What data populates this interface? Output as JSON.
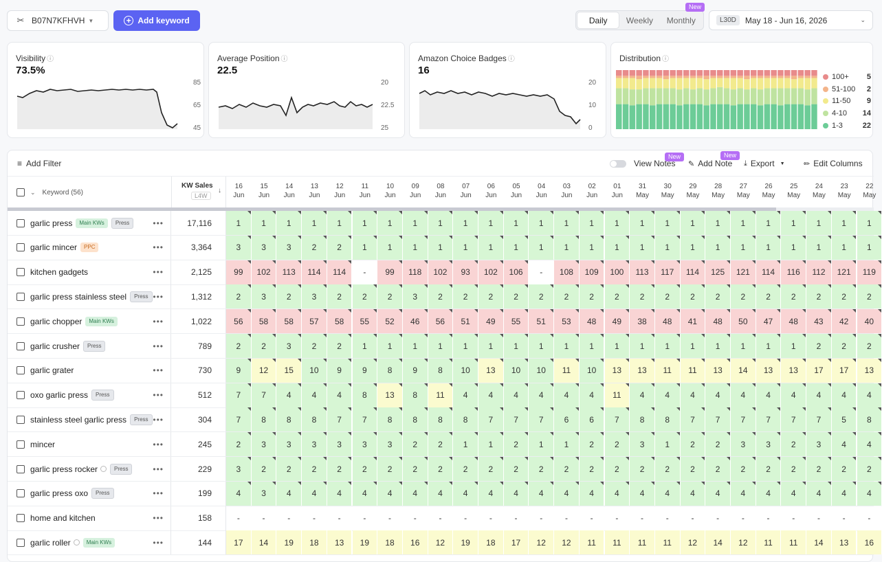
{
  "top": {
    "asin": "B07N7KFHVH",
    "add_keyword": "Add keyword",
    "periods": [
      "Daily",
      "Weekly",
      "Monthly"
    ],
    "active_period": "Daily",
    "new_badge": "New",
    "range_tag": "L30D",
    "range_text": "May 18 - Jun 16, 2026"
  },
  "cards": {
    "visibility": {
      "title": "Visibility",
      "value": "73.5%",
      "ticks": [
        "85",
        "65",
        "45"
      ]
    },
    "avg_position": {
      "title": "Average Position",
      "value": "22.5",
      "ticks": [
        "20",
        "22.5",
        "25"
      ]
    },
    "choice": {
      "title": "Amazon Choice Badges",
      "value": "16",
      "ticks": [
        "20",
        "10",
        "0"
      ]
    },
    "distribution": {
      "title": "Distribution",
      "legend": [
        {
          "label": "100+",
          "count": "5",
          "color": "#e88b8b"
        },
        {
          "label": "51-100",
          "count": "2",
          "color": "#f3b48a"
        },
        {
          "label": "11-50",
          "count": "9",
          "color": "#f2ea8d"
        },
        {
          "label": "4-10",
          "count": "14",
          "color": "#bfe3a0"
        },
        {
          "label": "1-3",
          "count": "22",
          "color": "#6ccc97"
        }
      ]
    }
  },
  "toolbar": {
    "add_filter": "Add Filter",
    "view_notes": "View Notes",
    "add_note": "Add Note",
    "export": "Export",
    "edit_columns": "Edit Columns",
    "new_badge": "New"
  },
  "header": {
    "keyword_col": "Keyword (56)",
    "sales_col": "KW Sales",
    "sales_sub": "L4W",
    "dates": [
      [
        "16",
        "Jun"
      ],
      [
        "15",
        "Jun"
      ],
      [
        "14",
        "Jun"
      ],
      [
        "13",
        "Jun"
      ],
      [
        "12",
        "Jun"
      ],
      [
        "11",
        "Jun"
      ],
      [
        "10",
        "Jun"
      ],
      [
        "09",
        "Jun"
      ],
      [
        "08",
        "Jun"
      ],
      [
        "07",
        "Jun"
      ],
      [
        "06",
        "Jun"
      ],
      [
        "05",
        "Jun"
      ],
      [
        "04",
        "Jun"
      ],
      [
        "03",
        "Jun"
      ],
      [
        "02",
        "Jun"
      ],
      [
        "01",
        "Jun"
      ],
      [
        "31",
        "May"
      ],
      [
        "30",
        "May"
      ],
      [
        "29",
        "May"
      ],
      [
        "28",
        "May"
      ],
      [
        "27",
        "May"
      ],
      [
        "26",
        "May"
      ],
      [
        "25",
        "May"
      ],
      [
        "24",
        "May"
      ],
      [
        "23",
        "May"
      ],
      [
        "22",
        "May"
      ]
    ]
  },
  "rows": [
    {
      "keyword": "garlic press",
      "badges": [
        "Main KWs",
        "Press"
      ],
      "sales": "17,116",
      "info": false,
      "values": [
        "1",
        "1",
        "1",
        "1",
        "1",
        "1",
        "1",
        "1",
        "1",
        "1",
        "1",
        "1",
        "1",
        "1",
        "1",
        "1",
        "1",
        "1",
        "1",
        "1",
        "1",
        "1",
        "1",
        "1",
        "1",
        "1"
      ]
    },
    {
      "keyword": "garlic mincer",
      "badges": [
        "PPC"
      ],
      "sales": "3,364",
      "info": false,
      "values": [
        "3",
        "3",
        "3",
        "2",
        "2",
        "1",
        "1",
        "1",
        "1",
        "1",
        "1",
        "1",
        "1",
        "1",
        "1",
        "1",
        "1",
        "1",
        "1",
        "1",
        "1",
        "1",
        "1",
        "1",
        "1",
        "1"
      ]
    },
    {
      "keyword": "kitchen gadgets",
      "badges": [],
      "sales": "2,125",
      "info": false,
      "values": [
        "99",
        "102",
        "113",
        "114",
        "114",
        "-",
        "99",
        "118",
        "102",
        "93",
        "102",
        "106",
        "-",
        "108",
        "109",
        "100",
        "113",
        "117",
        "114",
        "125",
        "121",
        "114",
        "116",
        "112",
        "121",
        "119"
      ]
    },
    {
      "keyword": "garlic press stainless steel",
      "badges": [
        "Press"
      ],
      "sales": "1,312",
      "info": false,
      "values": [
        "2",
        "3",
        "2",
        "3",
        "2",
        "2",
        "2",
        "3",
        "2",
        "2",
        "2",
        "2",
        "2",
        "2",
        "2",
        "2",
        "2",
        "2",
        "2",
        "2",
        "2",
        "2",
        "2",
        "2",
        "2",
        "2"
      ]
    },
    {
      "keyword": "garlic chopper",
      "badges": [
        "Main KWs"
      ],
      "sales": "1,022",
      "info": false,
      "values": [
        "56",
        "58",
        "58",
        "57",
        "58",
        "55",
        "52",
        "46",
        "56",
        "51",
        "49",
        "55",
        "51",
        "53",
        "48",
        "49",
        "38",
        "48",
        "41",
        "48",
        "50",
        "47",
        "48",
        "43",
        "42",
        "40"
      ]
    },
    {
      "keyword": "garlic crusher",
      "badges": [
        "Press"
      ],
      "sales": "789",
      "info": false,
      "values": [
        "2",
        "2",
        "3",
        "2",
        "2",
        "1",
        "1",
        "1",
        "1",
        "1",
        "1",
        "1",
        "1",
        "1",
        "1",
        "1",
        "1",
        "1",
        "1",
        "1",
        "1",
        "1",
        "1",
        "2",
        "2",
        "2"
      ]
    },
    {
      "keyword": "garlic grater",
      "badges": [],
      "sales": "730",
      "info": false,
      "values": [
        "9",
        "12",
        "15",
        "10",
        "9",
        "9",
        "8",
        "9",
        "8",
        "10",
        "13",
        "10",
        "10",
        "11",
        "10",
        "13",
        "13",
        "11",
        "11",
        "13",
        "14",
        "13",
        "13",
        "17",
        "17",
        "13"
      ]
    },
    {
      "keyword": "oxo garlic press",
      "badges": [
        "Press"
      ],
      "sales": "512",
      "info": false,
      "values": [
        "7",
        "7",
        "4",
        "4",
        "4",
        "8",
        "13",
        "8",
        "11",
        "4",
        "4",
        "4",
        "4",
        "4",
        "4",
        "11",
        "4",
        "4",
        "4",
        "4",
        "4",
        "4",
        "4",
        "4",
        "4",
        "4"
      ]
    },
    {
      "keyword": "stainless steel garlic press",
      "badges": [
        "Press"
      ],
      "sales": "304",
      "info": false,
      "values": [
        "7",
        "8",
        "8",
        "8",
        "7",
        "7",
        "8",
        "8",
        "8",
        "8",
        "7",
        "7",
        "7",
        "6",
        "6",
        "7",
        "8",
        "8",
        "7",
        "7",
        "7",
        "7",
        "7",
        "7",
        "5",
        "8"
      ]
    },
    {
      "keyword": "mincer",
      "badges": [],
      "sales": "245",
      "info": false,
      "values": [
        "2",
        "3",
        "3",
        "3",
        "3",
        "3",
        "3",
        "2",
        "2",
        "1",
        "1",
        "2",
        "1",
        "1",
        "2",
        "2",
        "3",
        "1",
        "2",
        "2",
        "3",
        "3",
        "2",
        "3",
        "4",
        "4"
      ]
    },
    {
      "keyword": "garlic press rocker",
      "badges": [
        "Press"
      ],
      "sales": "229",
      "info": true,
      "values": [
        "3",
        "2",
        "2",
        "2",
        "2",
        "2",
        "2",
        "2",
        "2",
        "2",
        "2",
        "2",
        "2",
        "2",
        "2",
        "2",
        "2",
        "2",
        "2",
        "2",
        "2",
        "2",
        "2",
        "2",
        "2",
        "2"
      ]
    },
    {
      "keyword": "garlic press oxo",
      "badges": [
        "Press"
      ],
      "sales": "199",
      "info": false,
      "values": [
        "4",
        "3",
        "4",
        "4",
        "4",
        "4",
        "4",
        "4",
        "4",
        "4",
        "4",
        "4",
        "4",
        "4",
        "4",
        "4",
        "4",
        "4",
        "4",
        "4",
        "4",
        "4",
        "4",
        "4",
        "4",
        "4"
      ]
    },
    {
      "keyword": "home and kitchen",
      "badges": [],
      "sales": "158",
      "info": false,
      "values": [
        "-",
        "-",
        "-",
        "-",
        "-",
        "-",
        "-",
        "-",
        "-",
        "-",
        "-",
        "-",
        "-",
        "-",
        "-",
        "-",
        "-",
        "-",
        "-",
        "-",
        "-",
        "-",
        "-",
        "-",
        "-",
        "-"
      ]
    },
    {
      "keyword": "garlic roller",
      "badges": [
        "Main KWs"
      ],
      "sales": "144",
      "info": true,
      "values": [
        "17",
        "14",
        "19",
        "18",
        "13",
        "19",
        "18",
        "16",
        "12",
        "19",
        "18",
        "17",
        "12",
        "12",
        "11",
        "11",
        "11",
        "11",
        "12",
        "14",
        "12",
        "11",
        "11",
        "14",
        "13",
        "16"
      ]
    }
  ]
}
